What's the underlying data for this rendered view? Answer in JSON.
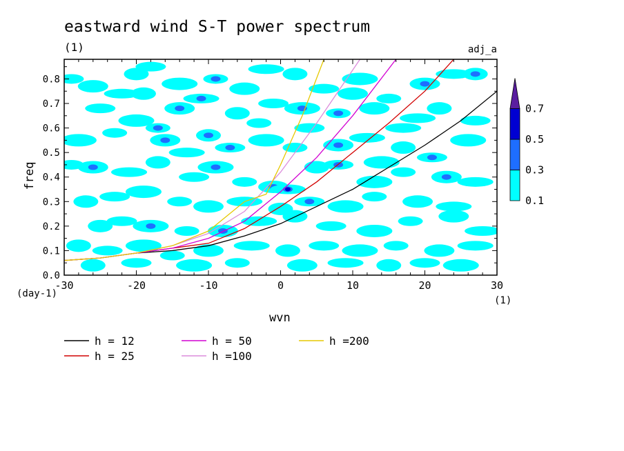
{
  "chart_data": {
    "type": "contour",
    "title": "eastward wind S-T power spectrum",
    "subtitle_left": "(1)",
    "subtitle_right": "adj_a",
    "xlabel": "wvn",
    "ylabel": "freq",
    "x_unit": "(1)",
    "y_unit": "(day-1)",
    "xlim": [
      -30,
      30
    ],
    "ylim": [
      0,
      0.88
    ],
    "x_ticks": [
      -30,
      -20,
      -10,
      0,
      10,
      20,
      30
    ],
    "x_tick_labels": [
      "-30",
      "-20",
      "-10",
      "0",
      "10",
      "20",
      "30"
    ],
    "y_ticks": [
      0,
      0.1,
      0.2,
      0.3,
      0.4,
      0.5,
      0.6,
      0.7,
      0.8
    ],
    "y_tick_labels": [
      "0.0",
      "0.1",
      "0.2",
      "0.3",
      "0.4",
      "0.5",
      "0.6",
      "0.7",
      "0.8"
    ],
    "contour_levels": {
      "bounds": [
        0.1,
        0.3,
        0.5,
        0.7
      ],
      "labels": [
        "0.1",
        "0.3",
        "0.5",
        "0.7"
      ],
      "colors": [
        "#00ffff",
        "#1e6eff",
        "#0000d2",
        "#5a1ea0"
      ]
    },
    "spectrum_blobs": [
      {
        "x": -29,
        "y": 0.8,
        "l": 1
      },
      {
        "x": -26,
        "y": 0.77,
        "l": 1
      },
      {
        "x": -22,
        "y": 0.74,
        "l": 1
      },
      {
        "x": -20,
        "y": 0.82,
        "l": 1
      },
      {
        "x": -18,
        "y": 0.85,
        "l": 1
      },
      {
        "x": -14,
        "y": 0.78,
        "l": 1
      },
      {
        "x": -9,
        "y": 0.8,
        "l": 2
      },
      {
        "x": -5,
        "y": 0.76,
        "l": 1
      },
      {
        "x": -2,
        "y": 0.84,
        "l": 1
      },
      {
        "x": 2,
        "y": 0.82,
        "l": 1
      },
      {
        "x": 6,
        "y": 0.76,
        "l": 1
      },
      {
        "x": 11,
        "y": 0.8,
        "l": 1
      },
      {
        "x": 15,
        "y": 0.72,
        "l": 1
      },
      {
        "x": 20,
        "y": 0.78,
        "l": 2
      },
      {
        "x": 24,
        "y": 0.82,
        "l": 1
      },
      {
        "x": 27,
        "y": 0.82,
        "l": 2
      },
      {
        "x": -25,
        "y": 0.68,
        "l": 1
      },
      {
        "x": -20,
        "y": 0.63,
        "l": 1
      },
      {
        "x": -17,
        "y": 0.6,
        "l": 2
      },
      {
        "x": -14,
        "y": 0.68,
        "l": 2
      },
      {
        "x": -11,
        "y": 0.72,
        "l": 2
      },
      {
        "x": -6,
        "y": 0.66,
        "l": 1
      },
      {
        "x": -1,
        "y": 0.7,
        "l": 1
      },
      {
        "x": 3,
        "y": 0.68,
        "l": 2
      },
      {
        "x": 8,
        "y": 0.66,
        "l": 2
      },
      {
        "x": 13,
        "y": 0.68,
        "l": 1
      },
      {
        "x": 17,
        "y": 0.6,
        "l": 1
      },
      {
        "x": 22,
        "y": 0.68,
        "l": 1
      },
      {
        "x": 27,
        "y": 0.63,
        "l": 1
      },
      {
        "x": -28,
        "y": 0.55,
        "l": 1
      },
      {
        "x": -23,
        "y": 0.58,
        "l": 1
      },
      {
        "x": -16,
        "y": 0.55,
        "l": 2
      },
      {
        "x": -13,
        "y": 0.5,
        "l": 1
      },
      {
        "x": -10,
        "y": 0.57,
        "l": 2
      },
      {
        "x": -7,
        "y": 0.52,
        "l": 2
      },
      {
        "x": -2,
        "y": 0.55,
        "l": 1
      },
      {
        "x": 2,
        "y": 0.52,
        "l": 1
      },
      {
        "x": 8,
        "y": 0.53,
        "l": 2
      },
      {
        "x": 12,
        "y": 0.56,
        "l": 1
      },
      {
        "x": 17,
        "y": 0.52,
        "l": 1
      },
      {
        "x": 21,
        "y": 0.48,
        "l": 2
      },
      {
        "x": 26,
        "y": 0.55,
        "l": 1
      },
      {
        "x": -29,
        "y": 0.45,
        "l": 1
      },
      {
        "x": -26,
        "y": 0.44,
        "l": 2
      },
      {
        "x": -21,
        "y": 0.42,
        "l": 1
      },
      {
        "x": -17,
        "y": 0.46,
        "l": 1
      },
      {
        "x": -12,
        "y": 0.4,
        "l": 1
      },
      {
        "x": -9,
        "y": 0.44,
        "l": 2
      },
      {
        "x": -5,
        "y": 0.38,
        "l": 1
      },
      {
        "x": -1,
        "y": 0.36,
        "l": 2
      },
      {
        "x": 1,
        "y": 0.35,
        "l": 3
      },
      {
        "x": 5,
        "y": 0.44,
        "l": 1
      },
      {
        "x": 8,
        "y": 0.45,
        "l": 2
      },
      {
        "x": 13,
        "y": 0.38,
        "l": 1
      },
      {
        "x": 17,
        "y": 0.42,
        "l": 1
      },
      {
        "x": 23,
        "y": 0.4,
        "l": 2
      },
      {
        "x": 27,
        "y": 0.38,
        "l": 1
      },
      {
        "x": -27,
        "y": 0.3,
        "l": 1
      },
      {
        "x": -23,
        "y": 0.32,
        "l": 1
      },
      {
        "x": -19,
        "y": 0.34,
        "l": 1
      },
      {
        "x": -14,
        "y": 0.3,
        "l": 1
      },
      {
        "x": -10,
        "y": 0.28,
        "l": 1
      },
      {
        "x": -5,
        "y": 0.3,
        "l": 1
      },
      {
        "x": 0,
        "y": 0.27,
        "l": 1
      },
      {
        "x": 4,
        "y": 0.3,
        "l": 2
      },
      {
        "x": 9,
        "y": 0.28,
        "l": 1
      },
      {
        "x": 13,
        "y": 0.32,
        "l": 1
      },
      {
        "x": 19,
        "y": 0.3,
        "l": 1
      },
      {
        "x": 24,
        "y": 0.28,
        "l": 1
      },
      {
        "x": -25,
        "y": 0.2,
        "l": 1
      },
      {
        "x": -22,
        "y": 0.22,
        "l": 1
      },
      {
        "x": -18,
        "y": 0.2,
        "l": 2
      },
      {
        "x": -13,
        "y": 0.18,
        "l": 1
      },
      {
        "x": -8,
        "y": 0.18,
        "l": 2
      },
      {
        "x": -3,
        "y": 0.22,
        "l": 1
      },
      {
        "x": 2,
        "y": 0.24,
        "l": 1
      },
      {
        "x": 7,
        "y": 0.2,
        "l": 1
      },
      {
        "x": 13,
        "y": 0.18,
        "l": 1
      },
      {
        "x": 18,
        "y": 0.22,
        "l": 1
      },
      {
        "x": 24,
        "y": 0.24,
        "l": 1
      },
      {
        "x": 28,
        "y": 0.18,
        "l": 1
      },
      {
        "x": -28,
        "y": 0.12,
        "l": 1
      },
      {
        "x": -24,
        "y": 0.1,
        "l": 1
      },
      {
        "x": -19,
        "y": 0.12,
        "l": 1
      },
      {
        "x": -15,
        "y": 0.08,
        "l": 1
      },
      {
        "x": -10,
        "y": 0.1,
        "l": 1
      },
      {
        "x": -4,
        "y": 0.12,
        "l": 1
      },
      {
        "x": 1,
        "y": 0.1,
        "l": 1
      },
      {
        "x": 6,
        "y": 0.12,
        "l": 1
      },
      {
        "x": 11,
        "y": 0.1,
        "l": 1
      },
      {
        "x": 16,
        "y": 0.12,
        "l": 1
      },
      {
        "x": 22,
        "y": 0.1,
        "l": 1
      },
      {
        "x": 27,
        "y": 0.12,
        "l": 1
      },
      {
        "x": -26,
        "y": 0.04,
        "l": 1
      },
      {
        "x": -20,
        "y": 0.05,
        "l": 1
      },
      {
        "x": -12,
        "y": 0.04,
        "l": 1
      },
      {
        "x": -6,
        "y": 0.05,
        "l": 1
      },
      {
        "x": 3,
        "y": 0.04,
        "l": 1
      },
      {
        "x": 9,
        "y": 0.05,
        "l": 1
      },
      {
        "x": 15,
        "y": 0.04,
        "l": 1
      },
      {
        "x": 20,
        "y": 0.05,
        "l": 1
      },
      {
        "x": 25,
        "y": 0.04,
        "l": 1
      },
      {
        "x": -3,
        "y": 0.62,
        "l": 1
      },
      {
        "x": 10,
        "y": 0.74,
        "l": 1
      },
      {
        "x": 19,
        "y": 0.64,
        "l": 1
      },
      {
        "x": -19,
        "y": 0.74,
        "l": 1
      },
      {
        "x": 4,
        "y": 0.6,
        "l": 1
      },
      {
        "x": 14,
        "y": 0.46,
        "l": 1
      }
    ],
    "dispersion_curves": [
      {
        "name": "h = 12",
        "label": "h = 12",
        "color": "#000000",
        "x": [
          -30,
          -25,
          -20,
          -15,
          -10,
          -5,
          0,
          5,
          10,
          15,
          20,
          25,
          30
        ],
        "y": [
          0.06,
          0.07,
          0.09,
          0.1,
          0.12,
          0.16,
          0.21,
          0.28,
          0.35,
          0.44,
          0.53,
          0.63,
          0.75
        ]
      },
      {
        "name": "h = 25",
        "label": "h = 25",
        "color": "#d20000",
        "x": [
          -30,
          -25,
          -20,
          -15,
          -10,
          -5,
          0,
          5,
          10,
          15,
          20,
          24
        ],
        "y": [
          0.06,
          0.07,
          0.09,
          0.11,
          0.13,
          0.19,
          0.28,
          0.38,
          0.5,
          0.62,
          0.75,
          0.88
        ]
      },
      {
        "name": "h = 50",
        "label": "h = 50",
        "color": "#d200d2",
        "x": [
          -30,
          -25,
          -20,
          -15,
          -10,
          -5,
          0,
          5,
          10,
          16
        ],
        "y": [
          0.06,
          0.07,
          0.09,
          0.11,
          0.15,
          0.22,
          0.34,
          0.48,
          0.65,
          0.88
        ]
      },
      {
        "name": "h =100",
        "label": "h =100",
        "color": "#dc8cdc",
        "x": [
          -30,
          -25,
          -20,
          -15,
          -10,
          -5,
          0,
          5,
          11
        ],
        "y": [
          0.06,
          0.07,
          0.09,
          0.12,
          0.17,
          0.26,
          0.42,
          0.62,
          0.88
        ]
      },
      {
        "name": "h =200",
        "label": "h =200",
        "color": "#e6c800",
        "x": [
          -30,
          -25,
          -20,
          -15,
          -10,
          -5,
          -2,
          0,
          3,
          6
        ],
        "y": [
          0.06,
          0.07,
          0.09,
          0.12,
          0.18,
          0.3,
          0.33,
          0.45,
          0.65,
          0.88
        ]
      }
    ]
  }
}
